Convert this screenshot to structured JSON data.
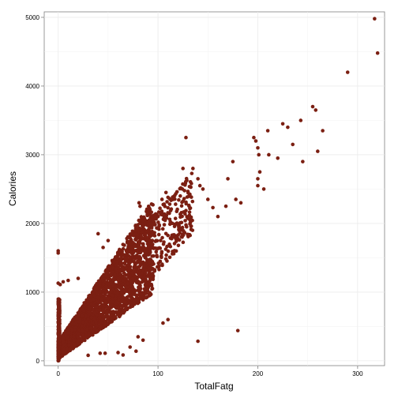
{
  "chart_data": {
    "type": "scatter",
    "title": "",
    "xlabel": "TotalFatg",
    "ylabel": "Calories",
    "xlim": [
      -14,
      327
    ],
    "ylim": [
      -70,
      5080
    ],
    "x_ticks": [
      0,
      100,
      200,
      300
    ],
    "y_ticks": [
      0,
      1000,
      2000,
      3000,
      4000,
      5000
    ],
    "x_tick_labels": [
      "0",
      "100",
      "200",
      "300"
    ],
    "y_tick_labels": [
      "0",
      "1000",
      "2000",
      "3000",
      "4000",
      "5000"
    ],
    "grid": true,
    "legend": "none",
    "point_color": "#7b1f12",
    "dense_cloud": {
      "note_points_x_range": [
        0,
        130
      ],
      "slope_calories_per_fatg": 16,
      "intercept": 150
    },
    "points": [
      {
        "x": 0,
        "y": 1600
      },
      {
        "x": 0,
        "y": 1570
      },
      {
        "x": 0,
        "y": 1130
      },
      {
        "x": 2,
        "y": 1110
      },
      {
        "x": 5,
        "y": 1150
      },
      {
        "x": 10,
        "y": 1170
      },
      {
        "x": 20,
        "y": 1200
      },
      {
        "x": 40,
        "y": 1850
      },
      {
        "x": 50,
        "y": 1750
      },
      {
        "x": 45,
        "y": 1650
      },
      {
        "x": 30,
        "y": 80
      },
      {
        "x": 42,
        "y": 110
      },
      {
        "x": 47,
        "y": 110
      },
      {
        "x": 60,
        "y": 120
      },
      {
        "x": 65,
        "y": 85
      },
      {
        "x": 78,
        "y": 140
      },
      {
        "x": 72,
        "y": 200
      },
      {
        "x": 80,
        "y": 350
      },
      {
        "x": 85,
        "y": 300
      },
      {
        "x": 105,
        "y": 550
      },
      {
        "x": 110,
        "y": 600
      },
      {
        "x": 140,
        "y": 285
      },
      {
        "x": 180,
        "y": 440
      },
      {
        "x": 81,
        "y": 2300
      },
      {
        "x": 82,
        "y": 2250
      },
      {
        "x": 90,
        "y": 2200
      },
      {
        "x": 104,
        "y": 2350
      },
      {
        "x": 108,
        "y": 2450
      },
      {
        "x": 110,
        "y": 2380
      },
      {
        "x": 115,
        "y": 2350
      },
      {
        "x": 125,
        "y": 2800
      },
      {
        "x": 128,
        "y": 3250
      },
      {
        "x": 135,
        "y": 2800
      },
      {
        "x": 140,
        "y": 2650
      },
      {
        "x": 142,
        "y": 2550
      },
      {
        "x": 145,
        "y": 2500
      },
      {
        "x": 150,
        "y": 2350
      },
      {
        "x": 155,
        "y": 2230
      },
      {
        "x": 160,
        "y": 2100
      },
      {
        "x": 168,
        "y": 2250
      },
      {
        "x": 170,
        "y": 2650
      },
      {
        "x": 175,
        "y": 2900
      },
      {
        "x": 178,
        "y": 2350
      },
      {
        "x": 183,
        "y": 2300
      },
      {
        "x": 196,
        "y": 3250
      },
      {
        "x": 198,
        "y": 3200
      },
      {
        "x": 200,
        "y": 3100
      },
      {
        "x": 201,
        "y": 3000
      },
      {
        "x": 200,
        "y": 2650
      },
      {
        "x": 200,
        "y": 2550
      },
      {
        "x": 202,
        "y": 2750
      },
      {
        "x": 206,
        "y": 2500
      },
      {
        "x": 210,
        "y": 3350
      },
      {
        "x": 211,
        "y": 3000
      },
      {
        "x": 220,
        "y": 2950
      },
      {
        "x": 225,
        "y": 3450
      },
      {
        "x": 230,
        "y": 3400
      },
      {
        "x": 235,
        "y": 3150
      },
      {
        "x": 243,
        "y": 3500
      },
      {
        "x": 245,
        "y": 2900
      },
      {
        "x": 255,
        "y": 3700
      },
      {
        "x": 258,
        "y": 3650
      },
      {
        "x": 260,
        "y": 3050
      },
      {
        "x": 265,
        "y": 3350
      },
      {
        "x": 290,
        "y": 4200
      },
      {
        "x": 317,
        "y": 4980
      },
      {
        "x": 320,
        "y": 4480
      }
    ]
  }
}
